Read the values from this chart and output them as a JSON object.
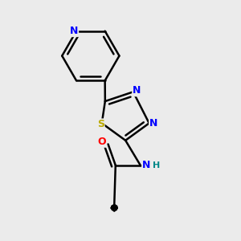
{
  "background_color": "#ebebeb",
  "atom_colors": {
    "N": "#0000ff",
    "S": "#bbaa00",
    "O": "#ff0000",
    "C": "#000000",
    "H": "#008888"
  },
  "bond_color": "#000000",
  "bond_width": 1.8,
  "figsize": [
    3.0,
    3.0
  ],
  "dpi": 100
}
